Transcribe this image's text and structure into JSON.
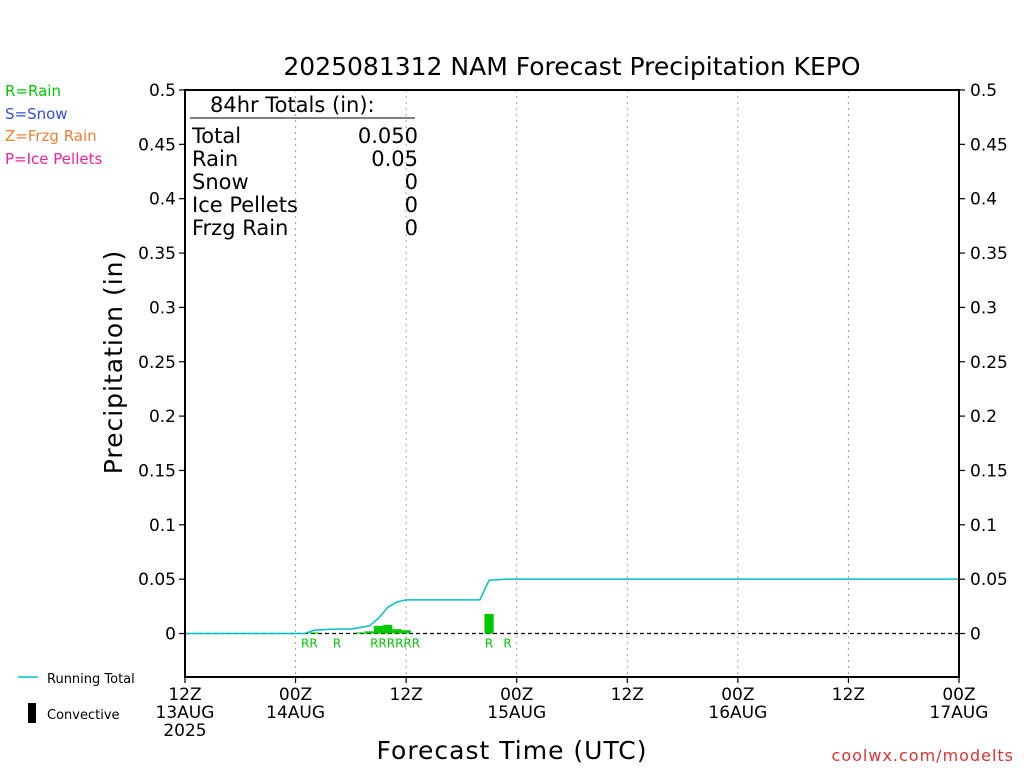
{
  "chart_data": {
    "type": "bar",
    "title": "2025081312 NAM Forecast Precipitation KEPO",
    "ylabel": "Precipitation (in)",
    "xlabel": "Forecast Time (UTC)",
    "ylim": [
      -0.04,
      0.5
    ],
    "xlim_hours": [
      0,
      84
    ],
    "y_ticks": [
      0,
      0.05,
      0.1,
      0.15,
      0.2,
      0.25,
      0.3,
      0.35,
      0.4,
      0.45,
      0.5
    ],
    "y_tick_labels": [
      "0",
      "0.05",
      "0.1",
      "0.15",
      "0.2",
      "0.25",
      "0.3",
      "0.35",
      "0.4",
      "0.45",
      "0.5"
    ],
    "x_ticks": [
      {
        "hour": 0,
        "lines": [
          "12Z",
          "13AUG",
          "2025"
        ]
      },
      {
        "hour": 12,
        "lines": [
          "00Z",
          "14AUG"
        ]
      },
      {
        "hour": 24,
        "lines": [
          "12Z"
        ]
      },
      {
        "hour": 36,
        "lines": [
          "00Z",
          "15AUG"
        ]
      },
      {
        "hour": 48,
        "lines": [
          "12Z"
        ]
      },
      {
        "hour": 60,
        "lines": [
          "00Z",
          "16AUG"
        ]
      },
      {
        "hour": 72,
        "lines": [
          "12Z"
        ]
      },
      {
        "hour": 84,
        "lines": [
          "00Z",
          "17AUG"
        ]
      }
    ],
    "grid": "vertical dotted",
    "precip_bars": [
      {
        "hour": 14,
        "value": 0.001
      },
      {
        "hour": 19,
        "value": 0.001
      },
      {
        "hour": 20,
        "value": 0.002
      },
      {
        "hour": 21,
        "value": 0.007
      },
      {
        "hour": 22,
        "value": 0.008
      },
      {
        "hour": 23,
        "value": 0.004
      },
      {
        "hour": 24,
        "value": 0.003
      },
      {
        "hour": 33,
        "value": 0.018
      }
    ],
    "convective_bars": [],
    "running_total": {
      "hours": [
        0,
        13,
        14,
        16,
        18,
        20,
        21,
        22,
        23,
        24,
        32,
        33,
        35,
        84
      ],
      "values": [
        0,
        0,
        0.003,
        0.004,
        0.004,
        0.007,
        0.014,
        0.024,
        0.029,
        0.031,
        0.031,
        0.049,
        0.05,
        0.05
      ],
      "color": "#00c0c8"
    },
    "precip_type_labels": [
      {
        "hour": 13.5,
        "text": "RR"
      },
      {
        "hour": 16.5,
        "text": "R"
      },
      {
        "hour": 22.8,
        "text": "RRRRRR"
      },
      {
        "hour": 33,
        "text": "R"
      },
      {
        "hour": 35,
        "text": "R"
      }
    ],
    "bar_color": "#00c800",
    "zero_line": "dashed"
  },
  "totals": {
    "heading": "84hr Totals (in):",
    "rows": [
      {
        "label": "Total",
        "value": "0.050"
      },
      {
        "label": "Rain",
        "value": "0.05"
      },
      {
        "label": "Snow",
        "value": "0"
      },
      {
        "label": "Ice Pellets",
        "value": "0"
      },
      {
        "label": "Frzg Rain",
        "value": "0"
      }
    ]
  },
  "type_legend": [
    {
      "text": "R=Rain",
      "color": "#00c800"
    },
    {
      "text": "S=Snow",
      "color": "#3050e0"
    },
    {
      "text": "Z=Frzg Rain",
      "color": "#f08030"
    },
    {
      "text": "P=Ice Pellets",
      "color": "#f020a0"
    }
  ],
  "series_legend": {
    "running_total": "Running Total",
    "convective": "Convective"
  },
  "credit": "coolwx.com/modelts"
}
